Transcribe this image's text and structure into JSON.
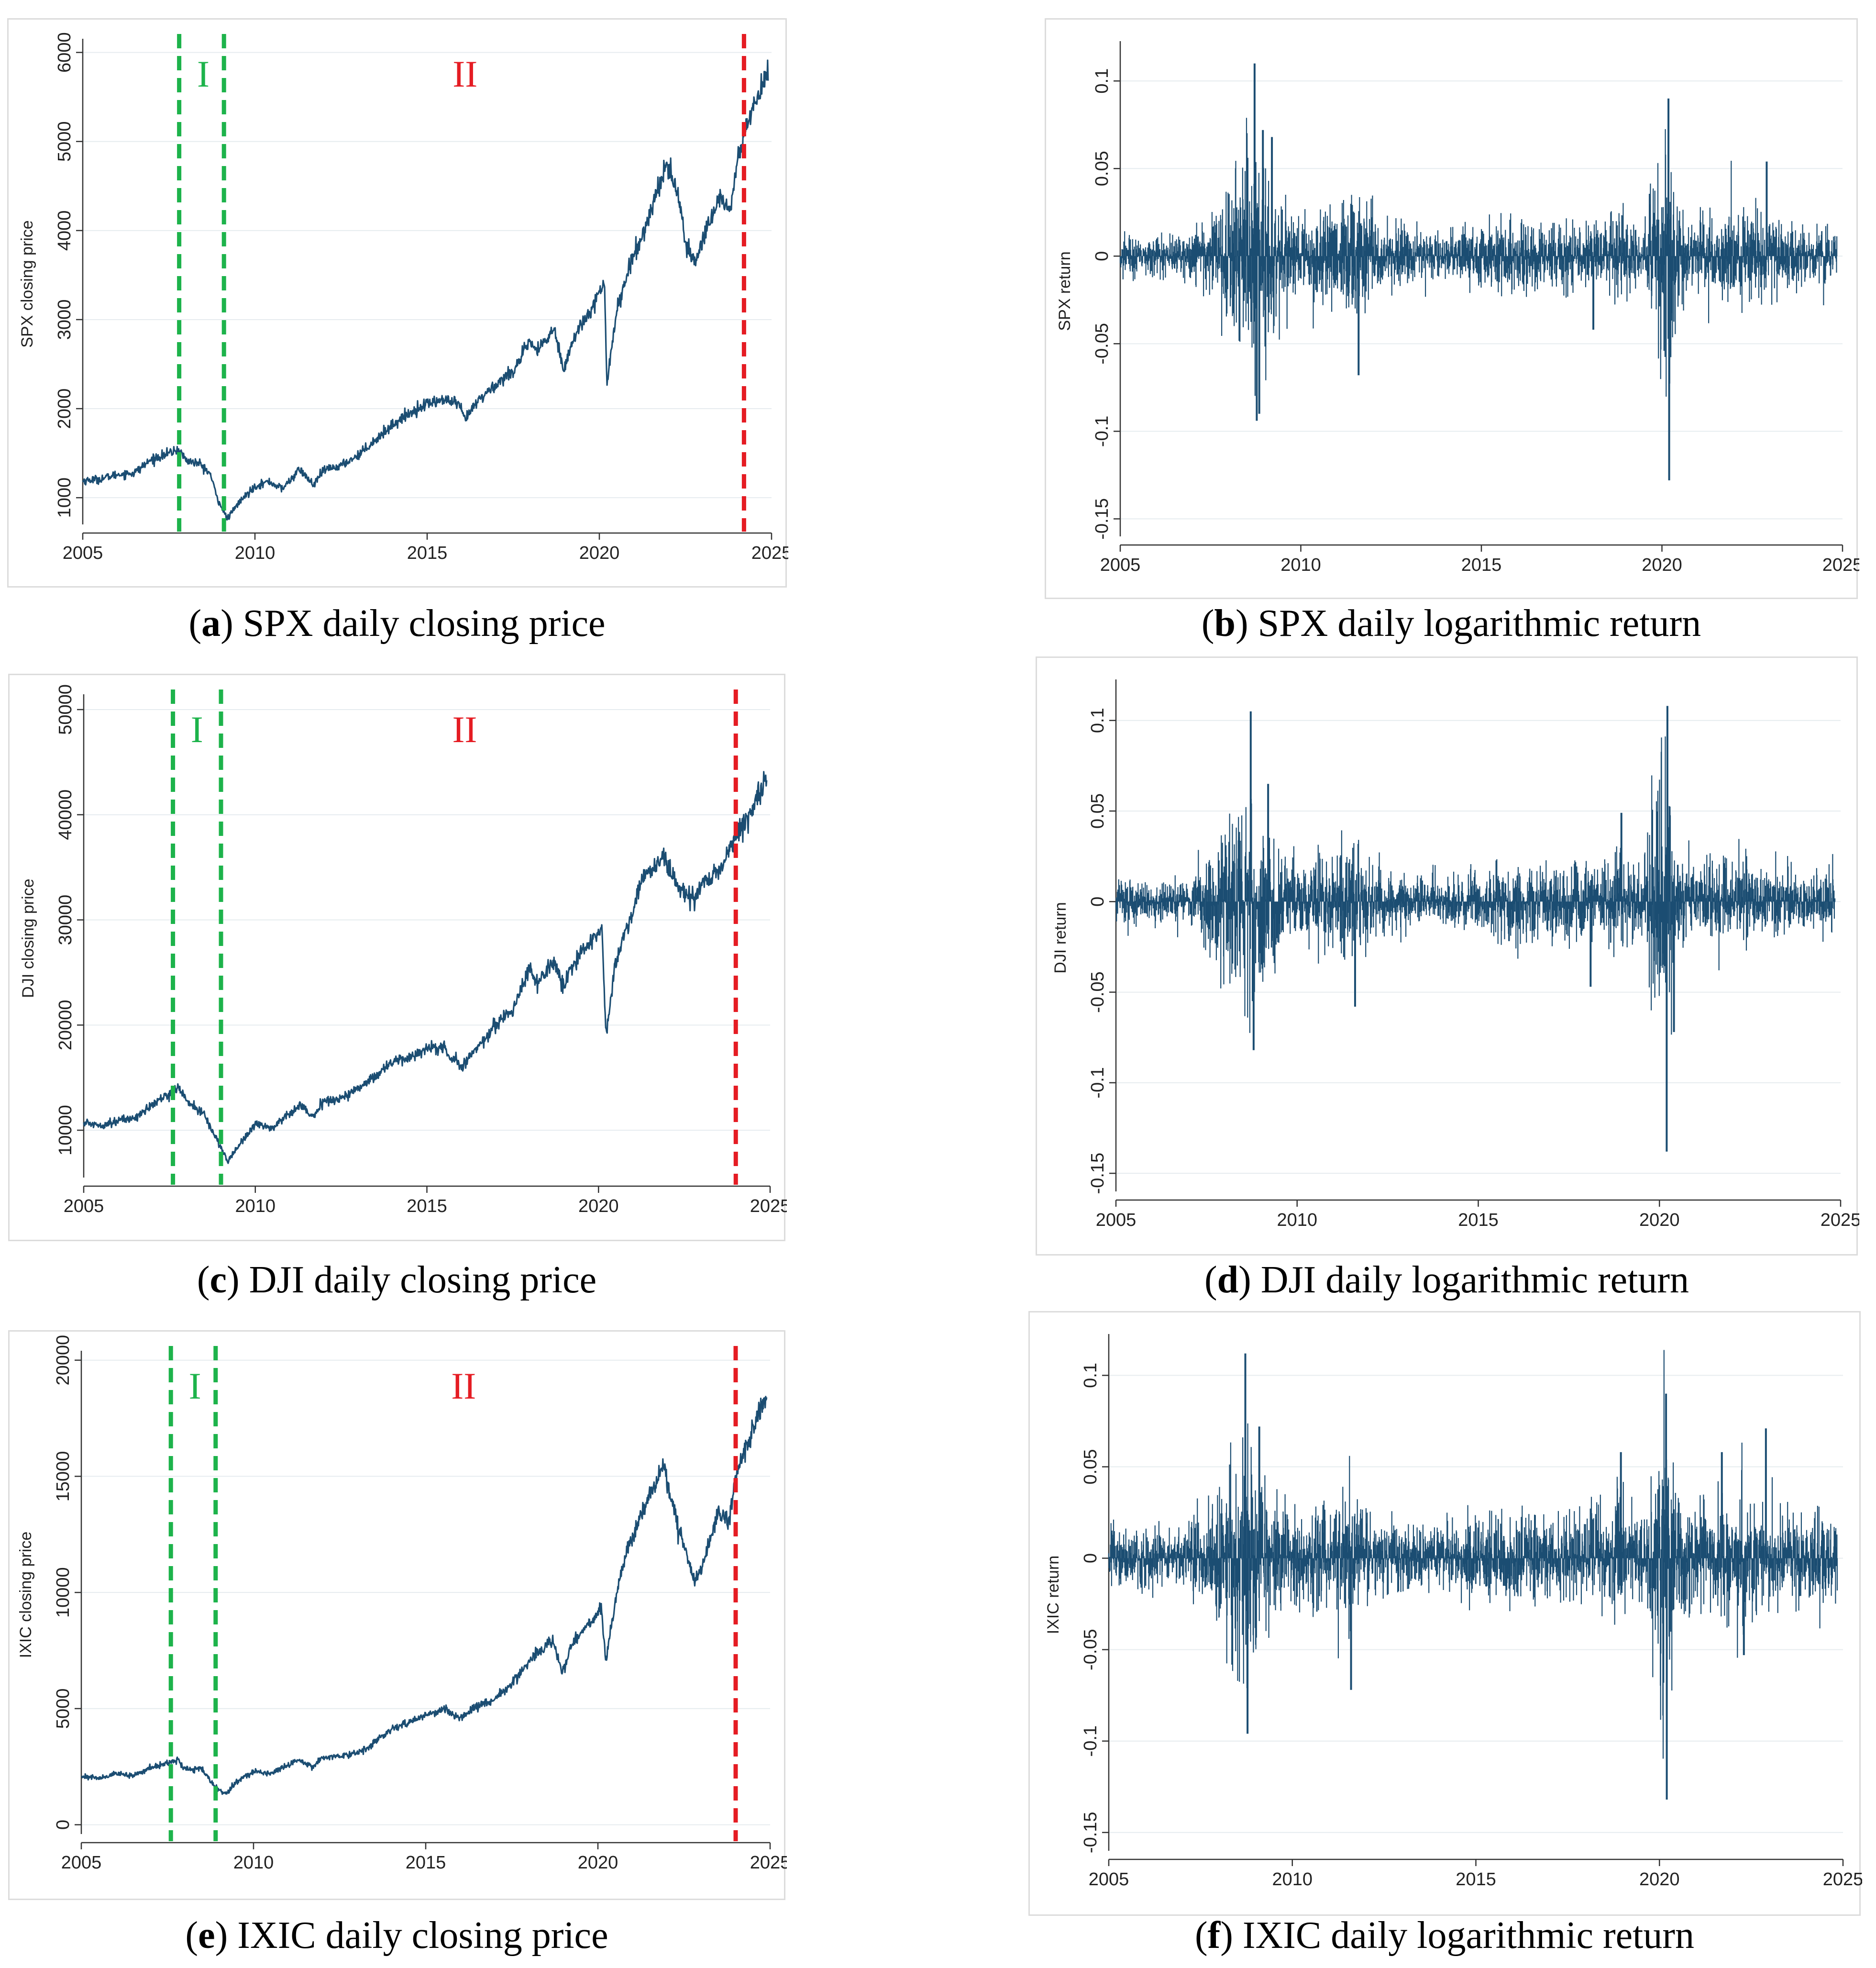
{
  "figure": {
    "panels": [
      {
        "id": "a",
        "letter": "a",
        "caption": " SPX daily closing price"
      },
      {
        "id": "b",
        "letter": "b",
        "caption": " SPX daily logarithmic return"
      },
      {
        "id": "c",
        "letter": "c",
        "caption": " DJI daily closing price"
      },
      {
        "id": "d",
        "letter": "d",
        "caption": " DJI daily logarithmic return"
      },
      {
        "id": "e",
        "letter": "e",
        "caption": " IXIC daily closing price"
      },
      {
        "id": "f",
        "letter": "f",
        "caption": " IXIC daily logarithmic return"
      }
    ]
  },
  "colors": {
    "line": "#1b4d72",
    "phase1": "#1db34b",
    "phase2": "#e51c23",
    "grid": "#e6ecef",
    "axis": "#333333"
  },
  "chart_data": [
    {
      "id": "a",
      "type": "line",
      "title": "",
      "xlabel": "",
      "ylabel": "SPX closing price",
      "xlim": [
        2005,
        2025
      ],
      "ylim": [
        700,
        6100
      ],
      "xticks": [
        2005,
        2010,
        2015,
        2020,
        2025
      ],
      "yticks": [
        1000,
        2000,
        3000,
        4000,
        5000,
        6000
      ],
      "phase_lines": [
        {
          "x": 2007.8,
          "color": "phase1"
        },
        {
          "x": 2009.1,
          "color": "phase1"
        },
        {
          "x": 2024.2,
          "color": "phase2"
        }
      ],
      "phase_labels": [
        {
          "text": "I",
          "x": 2008.5,
          "color": "phase1"
        },
        {
          "text": "II",
          "x": 2016.1,
          "color": "phase2"
        }
      ],
      "series": [
        {
          "name": "SPX",
          "x": [
            2005.0,
            2005.5,
            2006.0,
            2006.5,
            2007.0,
            2007.5,
            2007.8,
            2008.0,
            2008.4,
            2008.7,
            2008.9,
            2009.2,
            2009.5,
            2010.0,
            2010.4,
            2010.8,
            2011.3,
            2011.7,
            2012.0,
            2012.5,
            2013.0,
            2013.5,
            2014.0,
            2014.5,
            2015.0,
            2015.5,
            2015.9,
            2016.1,
            2016.5,
            2017.0,
            2017.5,
            2018.0,
            2018.2,
            2018.7,
            2018.95,
            2019.3,
            2019.9,
            2020.15,
            2020.22,
            2020.5,
            2020.9,
            2021.3,
            2021.6,
            2021.95,
            2022.3,
            2022.5,
            2022.8,
            2023.0,
            2023.5,
            2023.8,
            2024.0,
            2024.3,
            2024.6,
            2024.9
          ],
          "y": [
            1190,
            1210,
            1260,
            1280,
            1430,
            1500,
            1540,
            1420,
            1380,
            1270,
            1000,
            760,
            930,
            1130,
            1180,
            1100,
            1320,
            1140,
            1310,
            1360,
            1480,
            1650,
            1820,
            1950,
            2060,
            2100,
            2050,
            1880,
            2100,
            2270,
            2430,
            2750,
            2640,
            2900,
            2450,
            2820,
            3230,
            3380,
            2300,
            3100,
            3620,
            4000,
            4350,
            4760,
            4400,
            3820,
            3650,
            3900,
            4400,
            4200,
            4790,
            5200,
            5500,
            5850
          ]
        }
      ]
    },
    {
      "id": "b",
      "type": "line",
      "title": "",
      "xlabel": "",
      "ylabel": "SPX return",
      "xlim": [
        2005,
        2025
      ],
      "ylim": [
        -0.16,
        0.12
      ],
      "xticks": [
        2005,
        2010,
        2015,
        2020,
        2025
      ],
      "yticks": [
        -0.15,
        -0.1,
        -0.05,
        0,
        0.05,
        0.1
      ],
      "series": [
        {
          "name": "SPX return",
          "volatility_profile": {
            "x": [
              2005,
              2007,
              2007.6,
              2008.7,
              2009.3,
              2010,
              2010.4,
              2011.6,
              2012.2,
              2014,
              2015.6,
              2016.2,
              2018,
              2018.9,
              2019.5,
              2020.15,
              2020.5,
              2021,
              2022,
              2023,
              2024,
              2024.8
            ],
            "sd": [
              0.006,
              0.006,
              0.012,
              0.035,
              0.02,
              0.009,
              0.013,
              0.018,
              0.009,
              0.006,
              0.011,
              0.01,
              0.009,
              0.013,
              0.008,
              0.045,
              0.015,
              0.009,
              0.016,
              0.011,
              0.008,
              0.009
            ]
          },
          "extremes": [
            {
              "x": 2008.72,
              "y": 0.11
            },
            {
              "x": 2008.78,
              "y": -0.094
            },
            {
              "x": 2008.85,
              "y": -0.09
            },
            {
              "x": 2009.2,
              "y": 0.068
            },
            {
              "x": 2011.6,
              "y": -0.068
            },
            {
              "x": 2020.2,
              "y": -0.128
            },
            {
              "x": 2020.18,
              "y": 0.09
            },
            {
              "x": 2022.9,
              "y": 0.054
            },
            {
              "x": 2018.1,
              "y": -0.042
            },
            {
              "x": 2008.95,
              "y": 0.072
            }
          ]
        }
      ]
    },
    {
      "id": "c",
      "type": "line",
      "title": "",
      "xlabel": "",
      "ylabel": "DJI closing price",
      "xlim": [
        2005,
        2025
      ],
      "ylim": [
        5500,
        51000
      ],
      "xticks": [
        2005,
        2010,
        2015,
        2020,
        2025
      ],
      "yticks": [
        10000,
        20000,
        30000,
        40000,
        50000
      ],
      "phase_lines": [
        {
          "x": 2007.6,
          "color": "phase1"
        },
        {
          "x": 2009.0,
          "color": "phase1"
        },
        {
          "x": 2024.0,
          "color": "phase2"
        }
      ],
      "phase_labels": [
        {
          "text": "I",
          "x": 2008.3,
          "color": "phase1"
        },
        {
          "text": "II",
          "x": 2016.1,
          "color": "phase2"
        }
      ],
      "series": [
        {
          "name": "DJI",
          "x": [
            2005.0,
            2005.5,
            2006.0,
            2006.5,
            2007.0,
            2007.5,
            2007.8,
            2008.0,
            2008.5,
            2008.9,
            2009.2,
            2009.5,
            2010.0,
            2010.5,
            2011.3,
            2011.7,
            2012.0,
            2012.5,
            2013.0,
            2013.5,
            2014.0,
            2014.5,
            2015.0,
            2015.5,
            2016.0,
            2016.5,
            2017.0,
            2017.5,
            2018.0,
            2018.2,
            2018.7,
            2018.95,
            2019.3,
            2019.9,
            2020.1,
            2020.22,
            2020.5,
            2020.9,
            2021.3,
            2021.9,
            2022.4,
            2022.8,
            2023.0,
            2023.5,
            2024.0,
            2024.4,
            2024.9
          ],
          "y": [
            10700,
            10500,
            10900,
            11200,
            12400,
            13500,
            14000,
            12800,
            11500,
            9000,
            7000,
            8500,
            10600,
            10200,
            12500,
            11200,
            12800,
            13000,
            14000,
            15200,
            16500,
            16900,
            17800,
            17800,
            16000,
            18000,
            20000,
            21500,
            25500,
            24000,
            26000,
            23500,
            26000,
            28500,
            29000,
            19000,
            26000,
            30000,
            34000,
            36000,
            32500,
            32000,
            33500,
            34500,
            38000,
            40000,
            43000
          ]
        }
      ]
    },
    {
      "id": "d",
      "type": "line",
      "title": "",
      "xlabel": "",
      "ylabel": "DJI return",
      "xlim": [
        2005,
        2025
      ],
      "ylim": [
        -0.16,
        0.12
      ],
      "xticks": [
        2005,
        2010,
        2015,
        2020,
        2025
      ],
      "yticks": [
        -0.15,
        -0.1,
        -0.05,
        0,
        0.05,
        0.1
      ],
      "series": [
        {
          "name": "DJI return",
          "volatility_profile": {
            "x": [
              2005,
              2007,
              2007.6,
              2008.7,
              2009.3,
              2010,
              2010.4,
              2011.6,
              2012.2,
              2014,
              2015.6,
              2016.2,
              2018,
              2018.9,
              2019.5,
              2020.15,
              2020.5,
              2021,
              2022,
              2023,
              2024,
              2024.8
            ],
            "sd": [
              0.006,
              0.006,
              0.012,
              0.032,
              0.02,
              0.009,
              0.012,
              0.017,
              0.009,
              0.006,
              0.011,
              0.01,
              0.01,
              0.013,
              0.008,
              0.045,
              0.015,
              0.009,
              0.014,
              0.01,
              0.008,
              0.009
            ]
          },
          "extremes": [
            {
              "x": 2008.72,
              "y": 0.105
            },
            {
              "x": 2008.8,
              "y": -0.082
            },
            {
              "x": 2009.2,
              "y": 0.065
            },
            {
              "x": 2011.6,
              "y": -0.058
            },
            {
              "x": 2020.2,
              "y": -0.138
            },
            {
              "x": 2020.22,
              "y": 0.108
            },
            {
              "x": 2020.4,
              "y": -0.072
            },
            {
              "x": 2018.1,
              "y": -0.047
            },
            {
              "x": 2018.95,
              "y": 0.049
            }
          ]
        }
      ]
    },
    {
      "id": "e",
      "type": "line",
      "title": "",
      "xlabel": "",
      "ylabel": "IXIC closing price",
      "xlim": [
        2005,
        2025
      ],
      "ylim": [
        -400,
        20200
      ],
      "xticks": [
        2005,
        2010,
        2015,
        2020,
        2025
      ],
      "yticks": [
        0,
        5000,
        10000,
        15000,
        20000
      ],
      "phase_lines": [
        {
          "x": 2007.6,
          "color": "phase1"
        },
        {
          "x": 2008.9,
          "color": "phase1"
        },
        {
          "x": 2024.0,
          "color": "phase2"
        }
      ],
      "phase_labels": [
        {
          "text": "I",
          "x": 2008.3,
          "color": "phase1"
        },
        {
          "text": "II",
          "x": 2016.1,
          "color": "phase2"
        }
      ],
      "series": [
        {
          "name": "IXIC",
          "x": [
            2005.0,
            2005.5,
            2006.0,
            2006.5,
            2007.0,
            2007.5,
            2007.8,
            2008.0,
            2008.5,
            2008.9,
            2009.2,
            2009.5,
            2010.0,
            2010.5,
            2011.3,
            2011.7,
            2012.0,
            2012.5,
            2013.0,
            2013.5,
            2014.0,
            2014.5,
            2015.0,
            2015.5,
            2016.0,
            2016.5,
            2017.0,
            2017.5,
            2018.0,
            2018.7,
            2018.95,
            2019.3,
            2019.9,
            2020.1,
            2020.22,
            2020.6,
            2020.9,
            2021.3,
            2021.9,
            2022.3,
            2022.8,
            2023.0,
            2023.5,
            2023.8,
            2024.0,
            2024.3,
            2024.6,
            2024.9
          ],
          "y": [
            2100,
            2000,
            2200,
            2100,
            2450,
            2650,
            2800,
            2400,
            2400,
            1600,
            1300,
            1850,
            2300,
            2200,
            2800,
            2500,
            2900,
            2950,
            3100,
            3500,
            4100,
            4400,
            4700,
            5000,
            4600,
            5100,
            5400,
            6100,
            7000,
            8000,
            6500,
            7900,
            8900,
            9400,
            7000,
            10500,
            12000,
            13500,
            15500,
            13000,
            10500,
            11000,
            13500,
            13000,
            15000,
            16300,
            17500,
            18600
          ]
        }
      ]
    },
    {
      "id": "f",
      "type": "line",
      "title": "",
      "xlabel": "",
      "ylabel": "IXIC return",
      "xlim": [
        2005,
        2025
      ],
      "ylim": [
        -0.16,
        0.12
      ],
      "xticks": [
        2005,
        2010,
        2015,
        2020,
        2025
      ],
      "yticks": [
        -0.15,
        -0.1,
        -0.05,
        0,
        0.05,
        0.1
      ],
      "series": [
        {
          "name": "IXIC return",
          "volatility_profile": {
            "x": [
              2005,
              2007,
              2007.6,
              2008.7,
              2009.3,
              2010,
              2010.4,
              2011.6,
              2012.2,
              2014,
              2015.6,
              2016.2,
              2018,
              2018.9,
              2019.5,
              2020.15,
              2020.5,
              2021,
              2022,
              2023,
              2024,
              2024.8
            ],
            "sd": [
              0.008,
              0.008,
              0.013,
              0.034,
              0.022,
              0.012,
              0.014,
              0.019,
              0.01,
              0.009,
              0.013,
              0.012,
              0.012,
              0.016,
              0.01,
              0.045,
              0.018,
              0.013,
              0.021,
              0.013,
              0.012,
              0.013
            ]
          },
          "extremes": [
            {
              "x": 2008.72,
              "y": 0.112
            },
            {
              "x": 2008.78,
              "y": -0.096
            },
            {
              "x": 2009.1,
              "y": 0.072
            },
            {
              "x": 2011.6,
              "y": -0.072
            },
            {
              "x": 2020.2,
              "y": -0.132
            },
            {
              "x": 2020.18,
              "y": 0.09
            },
            {
              "x": 2022.9,
              "y": 0.071
            },
            {
              "x": 2021.7,
              "y": 0.058
            },
            {
              "x": 2018.95,
              "y": 0.058
            },
            {
              "x": 2022.3,
              "y": -0.053
            }
          ]
        }
      ]
    }
  ]
}
